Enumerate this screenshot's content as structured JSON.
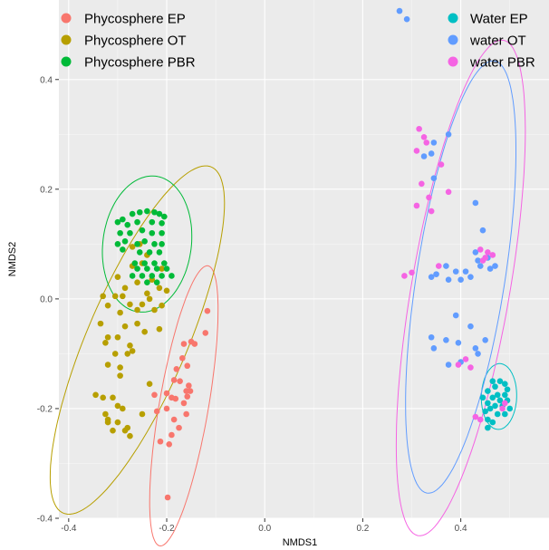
{
  "chart_data": {
    "type": "scatter",
    "xlabel": "NMDS1",
    "ylabel": "NMDS2",
    "xlim": [
      -0.42,
      0.58
    ],
    "ylim": [
      -0.4,
      0.545
    ],
    "x_ticks": [
      -0.4,
      -0.2,
      0.0,
      0.2,
      0.4
    ],
    "x_tick_labels": [
      "-0.4",
      "-0.2",
      "0.0",
      "0.2",
      "0.4"
    ],
    "y_ticks": [
      -0.4,
      -0.2,
      0.0,
      0.2,
      0.4
    ],
    "y_tick_labels": [
      "-0.4",
      "-0.2",
      "0.0",
      "0.2",
      "0.4"
    ],
    "grid": true,
    "legend_position": "top",
    "series": [
      {
        "name": "Phycosphere EP",
        "color": "#F8766D",
        "ellipse": {
          "cx": -0.165,
          "cy": -0.195,
          "rx": 0.26,
          "ry": 0.05,
          "angle": 79
        },
        "points": [
          [
            -0.117,
            -0.022
          ],
          [
            -0.121,
            -0.062
          ],
          [
            -0.143,
            -0.082
          ],
          [
            -0.15,
            -0.078
          ],
          [
            -0.165,
            -0.082
          ],
          [
            -0.158,
            -0.122
          ],
          [
            -0.168,
            -0.108
          ],
          [
            -0.18,
            -0.128
          ],
          [
            -0.185,
            -0.148
          ],
          [
            -0.173,
            -0.15
          ],
          [
            -0.155,
            -0.158
          ],
          [
            -0.16,
            -0.168
          ],
          [
            -0.152,
            -0.168
          ],
          [
            -0.2,
            -0.172
          ],
          [
            -0.225,
            -0.175
          ],
          [
            -0.19,
            -0.18
          ],
          [
            -0.182,
            -0.182
          ],
          [
            -0.158,
            -0.178
          ],
          [
            -0.165,
            -0.19
          ],
          [
            -0.2,
            -0.2
          ],
          [
            -0.22,
            -0.205
          ],
          [
            -0.16,
            -0.21
          ],
          [
            -0.185,
            -0.22
          ],
          [
            -0.175,
            -0.235
          ],
          [
            -0.19,
            -0.248
          ],
          [
            -0.195,
            -0.265
          ],
          [
            -0.213,
            -0.26
          ],
          [
            -0.198,
            -0.362
          ]
        ]
      },
      {
        "name": "Phycosphere OT",
        "color": "#B79F00",
        "ellipse": {
          "cx": -0.26,
          "cy": -0.075,
          "rx": 0.35,
          "ry": 0.1,
          "angle": 64
        },
        "points": [
          [
            -0.255,
            0.1
          ],
          [
            -0.27,
            0.095
          ],
          [
            -0.24,
            0.08
          ],
          [
            -0.25,
            0.065
          ],
          [
            -0.27,
            0.06
          ],
          [
            -0.21,
            0.055
          ],
          [
            -0.23,
            0.035
          ],
          [
            -0.26,
            0.03
          ],
          [
            -0.3,
            0.04
          ],
          [
            -0.285,
            0.02
          ],
          [
            -0.215,
            0.02
          ],
          [
            -0.2,
            0.015
          ],
          [
            -0.24,
            0.01
          ],
          [
            -0.29,
            0.005
          ],
          [
            -0.33,
            0.005
          ],
          [
            -0.305,
            0.005
          ],
          [
            -0.235,
            0.0
          ],
          [
            -0.25,
            -0.01
          ],
          [
            -0.275,
            -0.01
          ],
          [
            -0.32,
            -0.012
          ],
          [
            -0.26,
            -0.02
          ],
          [
            -0.225,
            -0.02
          ],
          [
            -0.21,
            -0.012
          ],
          [
            -0.295,
            -0.025
          ],
          [
            -0.285,
            -0.05
          ],
          [
            -0.335,
            -0.045
          ],
          [
            -0.26,
            -0.045
          ],
          [
            -0.245,
            -0.06
          ],
          [
            -0.215,
            -0.055
          ],
          [
            -0.32,
            -0.07
          ],
          [
            -0.3,
            -0.07
          ],
          [
            -0.325,
            -0.08
          ],
          [
            -0.275,
            -0.085
          ],
          [
            -0.27,
            -0.095
          ],
          [
            -0.305,
            -0.1
          ],
          [
            -0.28,
            -0.1
          ],
          [
            -0.32,
            -0.12
          ],
          [
            -0.295,
            -0.125
          ],
          [
            -0.295,
            -0.14
          ],
          [
            -0.235,
            -0.155
          ],
          [
            -0.33,
            -0.18
          ],
          [
            -0.31,
            -0.18
          ],
          [
            -0.3,
            -0.195
          ],
          [
            -0.29,
            -0.2
          ],
          [
            -0.25,
            -0.21
          ],
          [
            -0.325,
            -0.21
          ],
          [
            -0.32,
            -0.22
          ],
          [
            -0.3,
            -0.225
          ],
          [
            -0.28,
            -0.235
          ],
          [
            -0.31,
            -0.24
          ],
          [
            -0.285,
            -0.24
          ],
          [
            -0.275,
            -0.25
          ],
          [
            -0.345,
            -0.175
          ],
          [
            -0.32,
            -0.225
          ]
        ]
      },
      {
        "name": "Phycosphere PBR",
        "color": "#00BA38",
        "ellipse": {
          "cx": -0.24,
          "cy": 0.1,
          "rx": 0.125,
          "ry": 0.09,
          "angle": 80
        },
        "points": [
          [
            -0.29,
            0.145
          ],
          [
            -0.27,
            0.155
          ],
          [
            -0.255,
            0.158
          ],
          [
            -0.24,
            0.16
          ],
          [
            -0.225,
            0.158
          ],
          [
            -0.215,
            0.155
          ],
          [
            -0.205,
            0.15
          ],
          [
            -0.3,
            0.14
          ],
          [
            -0.28,
            0.135
          ],
          [
            -0.26,
            0.14
          ],
          [
            -0.23,
            0.14
          ],
          [
            -0.21,
            0.138
          ],
          [
            -0.295,
            0.12
          ],
          [
            -0.275,
            0.12
          ],
          [
            -0.25,
            0.125
          ],
          [
            -0.23,
            0.12
          ],
          [
            -0.21,
            0.12
          ],
          [
            -0.3,
            0.1
          ],
          [
            -0.285,
            0.105
          ],
          [
            -0.26,
            0.1
          ],
          [
            -0.245,
            0.105
          ],
          [
            -0.225,
            0.1
          ],
          [
            -0.21,
            0.1
          ],
          [
            -0.29,
            0.09
          ],
          [
            -0.255,
            0.085
          ],
          [
            -0.235,
            0.085
          ],
          [
            -0.215,
            0.085
          ],
          [
            -0.265,
            0.065
          ],
          [
            -0.245,
            0.065
          ],
          [
            -0.225,
            0.065
          ],
          [
            -0.205,
            0.065
          ],
          [
            -0.26,
            0.055
          ],
          [
            -0.24,
            0.055
          ],
          [
            -0.22,
            0.055
          ],
          [
            -0.2,
            0.055
          ],
          [
            -0.27,
            0.042
          ],
          [
            -0.25,
            0.042
          ],
          [
            -0.23,
            0.042
          ],
          [
            -0.21,
            0.042
          ],
          [
            -0.19,
            0.042
          ],
          [
            -0.24,
            0.03
          ],
          [
            -0.22,
            0.03
          ]
        ]
      },
      {
        "name": "Water EP",
        "color": "#00BFC4",
        "ellipse": {
          "cx": 0.478,
          "cy": -0.178,
          "rx": 0.06,
          "ry": 0.036,
          "angle": 88
        },
        "points": [
          [
            0.465,
            -0.15
          ],
          [
            0.48,
            -0.15
          ],
          [
            0.49,
            -0.155
          ],
          [
            0.47,
            -0.16
          ],
          [
            0.495,
            -0.165
          ],
          [
            0.455,
            -0.168
          ],
          [
            0.475,
            -0.175
          ],
          [
            0.49,
            -0.175
          ],
          [
            0.445,
            -0.18
          ],
          [
            0.465,
            -0.18
          ],
          [
            0.48,
            -0.185
          ],
          [
            0.495,
            -0.185
          ],
          [
            0.455,
            -0.19
          ],
          [
            0.47,
            -0.195
          ],
          [
            0.485,
            -0.195
          ],
          [
            0.46,
            -0.2
          ],
          [
            0.5,
            -0.2
          ],
          [
            0.45,
            -0.205
          ],
          [
            0.49,
            -0.21
          ],
          [
            0.475,
            -0.21
          ],
          [
            0.455,
            -0.22
          ],
          [
            0.465,
            -0.225
          ],
          [
            0.455,
            -0.235
          ]
        ]
      },
      {
        "name": "water OT",
        "color": "#619CFF",
        "ellipse": {
          "cx": 0.4,
          "cy": 0.04,
          "rx": 0.4,
          "ry": 0.09,
          "angle": 80
        },
        "points": [
          [
            0.275,
            0.525
          ],
          [
            0.29,
            0.51
          ],
          [
            0.375,
            0.3
          ],
          [
            0.345,
            0.285
          ],
          [
            0.34,
            0.265
          ],
          [
            0.325,
            0.26
          ],
          [
            0.345,
            0.22
          ],
          [
            0.43,
            0.175
          ],
          [
            0.445,
            0.125
          ],
          [
            0.43,
            0.085
          ],
          [
            0.435,
            0.07
          ],
          [
            0.455,
            0.075
          ],
          [
            0.44,
            0.06
          ],
          [
            0.47,
            0.06
          ],
          [
            0.46,
            0.055
          ],
          [
            0.37,
            0.06
          ],
          [
            0.39,
            0.05
          ],
          [
            0.41,
            0.05
          ],
          [
            0.35,
            0.045
          ],
          [
            0.42,
            0.04
          ],
          [
            0.375,
            0.035
          ],
          [
            0.4,
            0.035
          ],
          [
            0.34,
            0.04
          ],
          [
            0.39,
            -0.03
          ],
          [
            0.42,
            -0.05
          ],
          [
            0.34,
            -0.07
          ],
          [
            0.37,
            -0.075
          ],
          [
            0.395,
            -0.08
          ],
          [
            0.45,
            -0.075
          ],
          [
            0.345,
            -0.09
          ],
          [
            0.43,
            -0.09
          ],
          [
            0.435,
            -0.1
          ],
          [
            0.4,
            -0.115
          ],
          [
            0.375,
            -0.12
          ]
        ]
      },
      {
        "name": "water PBR",
        "color": "#F564E3",
        "ellipse": {
          "cx": 0.4,
          "cy": 0.02,
          "rx": 0.46,
          "ry": 0.1,
          "angle": 79
        },
        "points": [
          [
            0.315,
            0.31
          ],
          [
            0.325,
            0.295
          ],
          [
            0.33,
            0.285
          ],
          [
            0.31,
            0.27
          ],
          [
            0.36,
            0.245
          ],
          [
            0.32,
            0.21
          ],
          [
            0.375,
            0.195
          ],
          [
            0.335,
            0.185
          ],
          [
            0.31,
            0.17
          ],
          [
            0.34,
            0.16
          ],
          [
            0.44,
            0.09
          ],
          [
            0.455,
            0.085
          ],
          [
            0.465,
            0.08
          ],
          [
            0.45,
            0.075
          ],
          [
            0.445,
            0.07
          ],
          [
            0.355,
            0.06
          ],
          [
            0.3,
            0.048
          ],
          [
            0.285,
            0.042
          ],
          [
            0.395,
            -0.12
          ],
          [
            0.41,
            -0.11
          ],
          [
            0.42,
            -0.125
          ],
          [
            0.49,
            -0.19
          ],
          [
            0.485,
            -0.2
          ],
          [
            0.43,
            -0.215
          ],
          [
            0.44,
            -0.22
          ]
        ]
      }
    ]
  }
}
